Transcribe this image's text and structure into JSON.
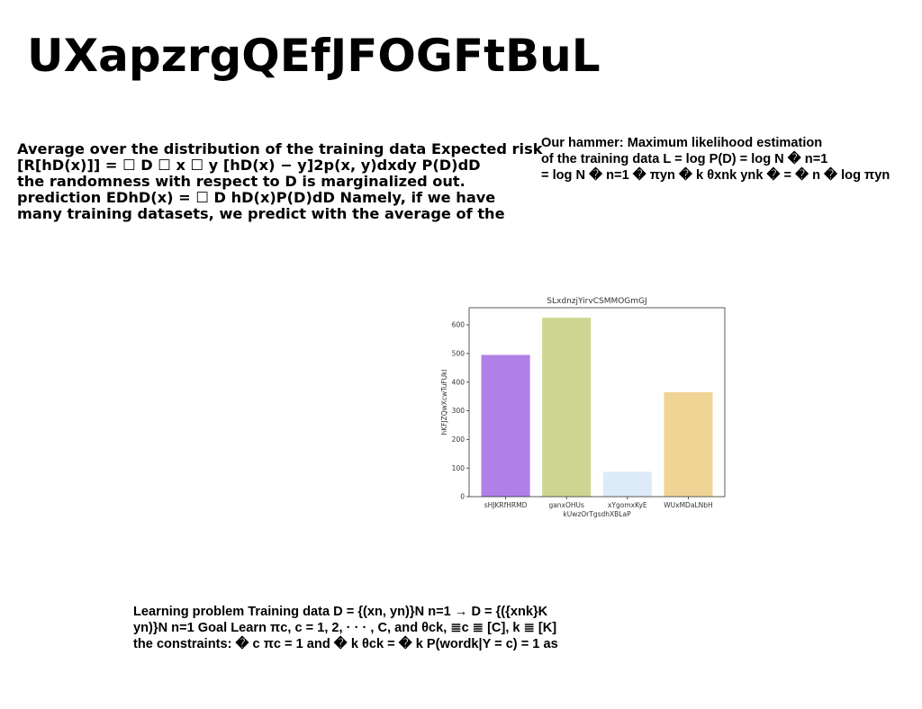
{
  "title": "UXapzrgQEfJFOGFtBuL",
  "text_left": [
    "Average over the distribution of the training data Expected risk",
    "[R[hD(x)]] = ☐ D ☐ x ☐ y [hD(x) − y]2p(x, y)dxdy P(D)dD",
    "the randomness with respect to D is marginalized out.",
    "prediction EDhD(x) = ☐ D hD(x)P(D)dD Namely, if we have",
    "many training datasets, we predict with the average of the"
  ],
  "text_right": [
    "Our hammer: Maximum likelihood estimation",
    "of the training data L = log P(D) = log N � n=1",
    "= log N � n=1 � πyn � k θxnk ynk � = � n � log πyn"
  ],
  "text_bottom": [
    "Learning problem Training data D = {(xn, yn)}N n=1 → D = {({xnk}K",
    "yn)}N n=1 Goal Learn πc, c = 1, 2, · · · , C, and θck, ≣c ≣ [C], k ≣ [K]",
    "the constraints: � c πc = 1 and � k θck = � k P(wordk|Y = c) = 1 as"
  ],
  "chart_data": {
    "type": "bar",
    "title": "SLxdnzjYirvCSMMOGmGJ",
    "xlabel": "kUwzOrTgsdhXBLaP",
    "ylabel": "hKFJZQwXcwTuFUkl",
    "categories": [
      "sHJKRfHRMD",
      "ganxOHUs",
      "xYgomxKyE",
      "WUxMDaLNbH"
    ],
    "values": [
      495,
      625,
      87,
      365
    ],
    "colors": [
      "#b07fe8",
      "#cdd690",
      "#dcebf7",
      "#f0d496"
    ],
    "ylim": [
      0,
      660
    ],
    "yticks": [
      0,
      100,
      200,
      300,
      400,
      500,
      600
    ],
    "grid": false,
    "legend": "none"
  }
}
